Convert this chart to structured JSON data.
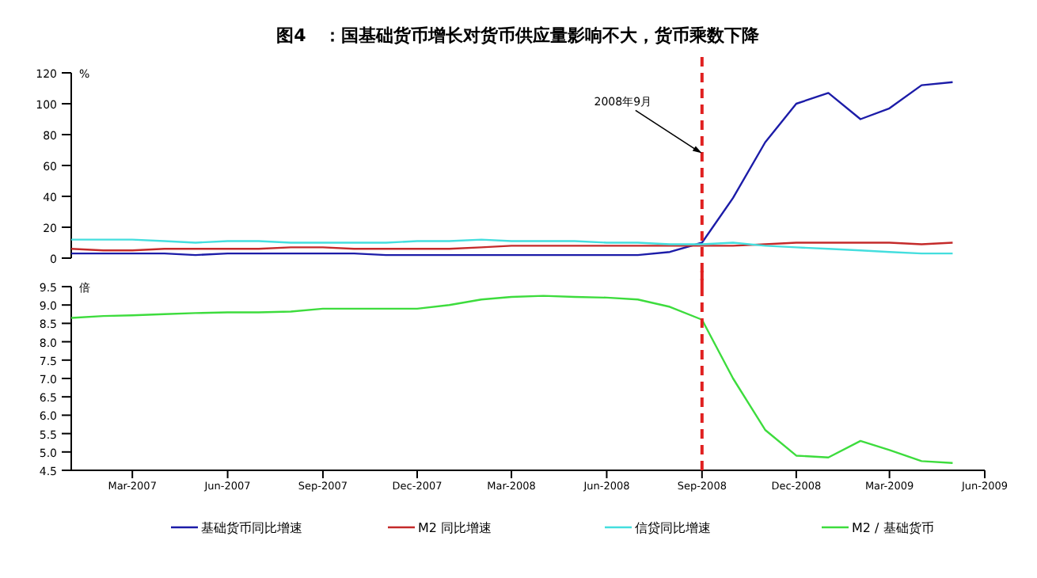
{
  "chart_data": [
    {
      "type": "line",
      "title": "图4　：国基础货币增长对货币供应量影响不大，货币乘数下降",
      "ylabel": "%",
      "x": [
        "2007-01",
        "2007-02",
        "2007-03",
        "2007-04",
        "2007-05",
        "2007-06",
        "2007-07",
        "2007-08",
        "2007-09",
        "2007-10",
        "2007-11",
        "2007-12",
        "2008-01",
        "2008-02",
        "2008-03",
        "2008-04",
        "2008-05",
        "2008-06",
        "2008-07",
        "2008-08",
        "2008-09",
        "2008-10",
        "2008-11",
        "2008-12",
        "2009-01",
        "2009-02",
        "2009-03",
        "2009-04",
        "2009-05"
      ],
      "series": [
        {
          "name": "基础货币同比增速",
          "color": "#1c1ca8",
          "values": [
            3,
            3,
            3,
            3,
            2,
            3,
            3,
            3,
            3,
            3,
            2,
            2,
            2,
            2,
            2,
            2,
            2,
            2,
            2,
            4,
            10,
            39,
            75,
            100,
            107,
            90,
            97,
            112,
            114
          ]
        },
        {
          "name": "M2 同比增速",
          "color": "#c42a2a",
          "values": [
            6,
            5,
            5,
            6,
            6,
            6,
            6,
            7,
            7,
            6,
            6,
            6,
            6,
            7,
            8,
            8,
            8,
            8,
            8,
            8,
            8,
            8,
            9,
            10,
            10,
            10,
            10,
            9,
            10
          ]
        },
        {
          "name": "信贷同比增速",
          "color": "#44dede",
          "values": [
            12,
            12,
            12,
            11,
            10,
            11,
            11,
            10,
            10,
            10,
            10,
            11,
            11,
            12,
            11,
            11,
            11,
            10,
            10,
            9,
            9,
            10,
            8,
            7,
            6,
            5,
            4,
            3,
            3
          ]
        }
      ],
      "xlim": [
        "2007-01",
        "2009-06"
      ],
      "ylim": [
        0,
        120
      ],
      "yticks": [
        0,
        20,
        40,
        60,
        80,
        100,
        120
      ],
      "tick_labels": "y",
      "ref_lines": [
        {
          "axis": "x",
          "value": "2008-09",
          "color": "#e02020",
          "line_style": "dashed"
        }
      ],
      "annotations": [
        {
          "text": "2008年9月",
          "x": "2008-09",
          "y": 68
        }
      ],
      "grid": false,
      "legend": "bottom"
    },
    {
      "type": "line",
      "ylabel": "倍",
      "x": [
        "2007-01",
        "2007-02",
        "2007-03",
        "2007-04",
        "2007-05",
        "2007-06",
        "2007-07",
        "2007-08",
        "2007-09",
        "2007-10",
        "2007-11",
        "2007-12",
        "2008-01",
        "2008-02",
        "2008-03",
        "2008-04",
        "2008-05",
        "2008-06",
        "2008-07",
        "2008-08",
        "2008-09",
        "2008-10",
        "2008-11",
        "2008-12",
        "2009-01",
        "2009-02",
        "2009-03",
        "2009-04",
        "2009-05"
      ],
      "series": [
        {
          "name": "M2 / 基础货币",
          "color": "#3ddc3d",
          "values": [
            8.65,
            8.7,
            8.72,
            8.75,
            8.78,
            8.8,
            8.8,
            8.82,
            8.9,
            8.9,
            8.9,
            8.9,
            9.0,
            9.15,
            9.22,
            9.25,
            9.22,
            9.2,
            9.15,
            8.95,
            8.6,
            7.0,
            5.6,
            4.9,
            4.85,
            5.3,
            5.05,
            4.75,
            4.7
          ]
        }
      ],
      "xlim": [
        "2007-01",
        "2009-06"
      ],
      "xticks": [
        {
          "value": "2007-03",
          "label": "Mar-2007"
        },
        {
          "value": "2007-06",
          "label": "Jun-2007"
        },
        {
          "value": "2007-09",
          "label": "Sep-2007"
        },
        {
          "value": "2007-12",
          "label": "Dec-2007"
        },
        {
          "value": "2008-03",
          "label": "Mar-2008"
        },
        {
          "value": "2008-06",
          "label": "Jun-2008"
        },
        {
          "value": "2008-09",
          "label": "Sep-2008"
        },
        {
          "value": "2008-12",
          "label": "Dec-2008"
        },
        {
          "value": "2009-03",
          "label": "Mar-2009"
        },
        {
          "value": "2009-06",
          "label": "Jun-2009"
        }
      ],
      "ylim": [
        4.5,
        9.5
      ],
      "yticks": [
        4.5,
        {
          "value": 5,
          "label": "5.0"
        },
        5.5,
        {
          "value": 6,
          "label": "6.0"
        },
        6.5,
        {
          "value": 7,
          "label": "7.0"
        },
        7.5,
        {
          "value": 8,
          "label": "8.0"
        },
        8.5,
        {
          "value": 9,
          "label": "9.0"
        },
        9.5
      ],
      "ref_lines": [
        {
          "axis": "x",
          "value": "2008-09",
          "color": "#e02020",
          "line_style": "dashed"
        }
      ],
      "grid": false,
      "legend": "bottom"
    }
  ]
}
